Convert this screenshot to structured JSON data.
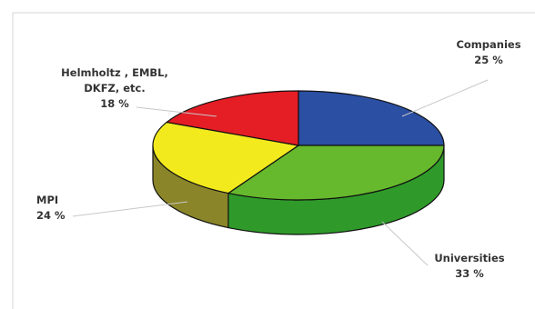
{
  "chart_data": {
    "type": "pie",
    "style": "3d",
    "title": "",
    "slices": [
      {
        "label_lines": [
          "Companies"
        ],
        "value_text": "25 %",
        "value": 25,
        "color": "#2b4fa3",
        "side_color": "#1f3a7a"
      },
      {
        "label_lines": [
          "Universities"
        ],
        "value_text": "33 %",
        "value": 33,
        "color": "#66b82c",
        "side_color": "#2f9a2a"
      },
      {
        "label_lines": [
          "MPI"
        ],
        "value_text": "24 %",
        "value": 24,
        "color": "#f2ea1d",
        "side_color": "#8a8529"
      },
      {
        "label_lines": [
          "Helmholtz , EMBL,",
          "DKFZ, etc."
        ],
        "value_text": "18 %",
        "value": 18,
        "color": "#e51d25",
        "side_color": "#a01218"
      }
    ]
  }
}
